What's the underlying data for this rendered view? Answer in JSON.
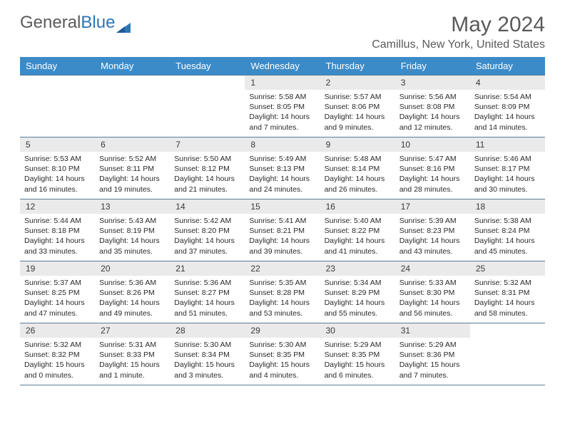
{
  "logo": {
    "text1": "General",
    "text2": "Blue"
  },
  "month_title": "May 2024",
  "location": "Camillus, New York, United States",
  "day_headers": [
    "Sunday",
    "Monday",
    "Tuesday",
    "Wednesday",
    "Thursday",
    "Friday",
    "Saturday"
  ],
  "colors": {
    "header_bg": "#3b8bc9",
    "header_text": "#ffffff",
    "daynum_bg": "#eaeaea",
    "border": "#5b7a99",
    "logo_gray": "#5a5a5a",
    "logo_blue": "#2e75b6"
  },
  "weeks": [
    [
      {
        "empty": true
      },
      {
        "empty": true
      },
      {
        "empty": true
      },
      {
        "day": "1",
        "sunrise": "Sunrise: 5:58 AM",
        "sunset": "Sunset: 8:05 PM",
        "daylight1": "Daylight: 14 hours",
        "daylight2": "and 7 minutes."
      },
      {
        "day": "2",
        "sunrise": "Sunrise: 5:57 AM",
        "sunset": "Sunset: 8:06 PM",
        "daylight1": "Daylight: 14 hours",
        "daylight2": "and 9 minutes."
      },
      {
        "day": "3",
        "sunrise": "Sunrise: 5:56 AM",
        "sunset": "Sunset: 8:08 PM",
        "daylight1": "Daylight: 14 hours",
        "daylight2": "and 12 minutes."
      },
      {
        "day": "4",
        "sunrise": "Sunrise: 5:54 AM",
        "sunset": "Sunset: 8:09 PM",
        "daylight1": "Daylight: 14 hours",
        "daylight2": "and 14 minutes."
      }
    ],
    [
      {
        "day": "5",
        "sunrise": "Sunrise: 5:53 AM",
        "sunset": "Sunset: 8:10 PM",
        "daylight1": "Daylight: 14 hours",
        "daylight2": "and 16 minutes."
      },
      {
        "day": "6",
        "sunrise": "Sunrise: 5:52 AM",
        "sunset": "Sunset: 8:11 PM",
        "daylight1": "Daylight: 14 hours",
        "daylight2": "and 19 minutes."
      },
      {
        "day": "7",
        "sunrise": "Sunrise: 5:50 AM",
        "sunset": "Sunset: 8:12 PM",
        "daylight1": "Daylight: 14 hours",
        "daylight2": "and 21 minutes."
      },
      {
        "day": "8",
        "sunrise": "Sunrise: 5:49 AM",
        "sunset": "Sunset: 8:13 PM",
        "daylight1": "Daylight: 14 hours",
        "daylight2": "and 24 minutes."
      },
      {
        "day": "9",
        "sunrise": "Sunrise: 5:48 AM",
        "sunset": "Sunset: 8:14 PM",
        "daylight1": "Daylight: 14 hours",
        "daylight2": "and 26 minutes."
      },
      {
        "day": "10",
        "sunrise": "Sunrise: 5:47 AM",
        "sunset": "Sunset: 8:16 PM",
        "daylight1": "Daylight: 14 hours",
        "daylight2": "and 28 minutes."
      },
      {
        "day": "11",
        "sunrise": "Sunrise: 5:46 AM",
        "sunset": "Sunset: 8:17 PM",
        "daylight1": "Daylight: 14 hours",
        "daylight2": "and 30 minutes."
      }
    ],
    [
      {
        "day": "12",
        "sunrise": "Sunrise: 5:44 AM",
        "sunset": "Sunset: 8:18 PM",
        "daylight1": "Daylight: 14 hours",
        "daylight2": "and 33 minutes."
      },
      {
        "day": "13",
        "sunrise": "Sunrise: 5:43 AM",
        "sunset": "Sunset: 8:19 PM",
        "daylight1": "Daylight: 14 hours",
        "daylight2": "and 35 minutes."
      },
      {
        "day": "14",
        "sunrise": "Sunrise: 5:42 AM",
        "sunset": "Sunset: 8:20 PM",
        "daylight1": "Daylight: 14 hours",
        "daylight2": "and 37 minutes."
      },
      {
        "day": "15",
        "sunrise": "Sunrise: 5:41 AM",
        "sunset": "Sunset: 8:21 PM",
        "daylight1": "Daylight: 14 hours",
        "daylight2": "and 39 minutes."
      },
      {
        "day": "16",
        "sunrise": "Sunrise: 5:40 AM",
        "sunset": "Sunset: 8:22 PM",
        "daylight1": "Daylight: 14 hours",
        "daylight2": "and 41 minutes."
      },
      {
        "day": "17",
        "sunrise": "Sunrise: 5:39 AM",
        "sunset": "Sunset: 8:23 PM",
        "daylight1": "Daylight: 14 hours",
        "daylight2": "and 43 minutes."
      },
      {
        "day": "18",
        "sunrise": "Sunrise: 5:38 AM",
        "sunset": "Sunset: 8:24 PM",
        "daylight1": "Daylight: 14 hours",
        "daylight2": "and 45 minutes."
      }
    ],
    [
      {
        "day": "19",
        "sunrise": "Sunrise: 5:37 AM",
        "sunset": "Sunset: 8:25 PM",
        "daylight1": "Daylight: 14 hours",
        "daylight2": "and 47 minutes."
      },
      {
        "day": "20",
        "sunrise": "Sunrise: 5:36 AM",
        "sunset": "Sunset: 8:26 PM",
        "daylight1": "Daylight: 14 hours",
        "daylight2": "and 49 minutes."
      },
      {
        "day": "21",
        "sunrise": "Sunrise: 5:36 AM",
        "sunset": "Sunset: 8:27 PM",
        "daylight1": "Daylight: 14 hours",
        "daylight2": "and 51 minutes."
      },
      {
        "day": "22",
        "sunrise": "Sunrise: 5:35 AM",
        "sunset": "Sunset: 8:28 PM",
        "daylight1": "Daylight: 14 hours",
        "daylight2": "and 53 minutes."
      },
      {
        "day": "23",
        "sunrise": "Sunrise: 5:34 AM",
        "sunset": "Sunset: 8:29 PM",
        "daylight1": "Daylight: 14 hours",
        "daylight2": "and 55 minutes."
      },
      {
        "day": "24",
        "sunrise": "Sunrise: 5:33 AM",
        "sunset": "Sunset: 8:30 PM",
        "daylight1": "Daylight: 14 hours",
        "daylight2": "and 56 minutes."
      },
      {
        "day": "25",
        "sunrise": "Sunrise: 5:32 AM",
        "sunset": "Sunset: 8:31 PM",
        "daylight1": "Daylight: 14 hours",
        "daylight2": "and 58 minutes."
      }
    ],
    [
      {
        "day": "26",
        "sunrise": "Sunrise: 5:32 AM",
        "sunset": "Sunset: 8:32 PM",
        "daylight1": "Daylight: 15 hours",
        "daylight2": "and 0 minutes."
      },
      {
        "day": "27",
        "sunrise": "Sunrise: 5:31 AM",
        "sunset": "Sunset: 8:33 PM",
        "daylight1": "Daylight: 15 hours",
        "daylight2": "and 1 minute."
      },
      {
        "day": "28",
        "sunrise": "Sunrise: 5:30 AM",
        "sunset": "Sunset: 8:34 PM",
        "daylight1": "Daylight: 15 hours",
        "daylight2": "and 3 minutes."
      },
      {
        "day": "29",
        "sunrise": "Sunrise: 5:30 AM",
        "sunset": "Sunset: 8:35 PM",
        "daylight1": "Daylight: 15 hours",
        "daylight2": "and 4 minutes."
      },
      {
        "day": "30",
        "sunrise": "Sunrise: 5:29 AM",
        "sunset": "Sunset: 8:35 PM",
        "daylight1": "Daylight: 15 hours",
        "daylight2": "and 6 minutes."
      },
      {
        "day": "31",
        "sunrise": "Sunrise: 5:29 AM",
        "sunset": "Sunset: 8:36 PM",
        "daylight1": "Daylight: 15 hours",
        "daylight2": "and 7 minutes."
      },
      {
        "empty": true
      }
    ]
  ]
}
